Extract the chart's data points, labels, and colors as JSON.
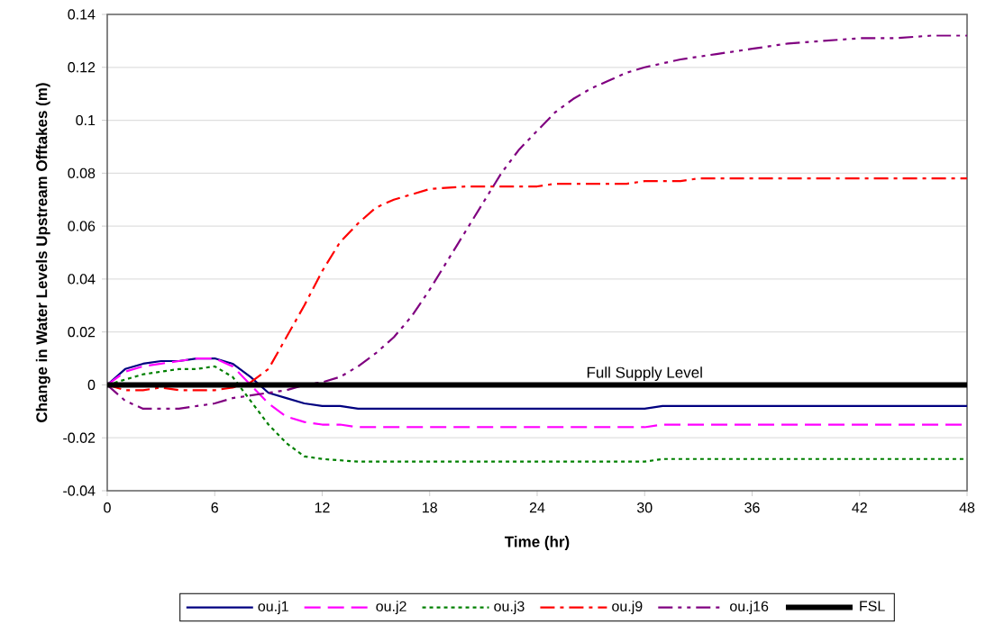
{
  "chart_data": {
    "type": "line",
    "xlabel": "Time (hr)",
    "ylabel": "Change in Water Levels Upstream Offtakes (m)",
    "xlim": [
      0,
      48
    ],
    "xticks": [
      0,
      6,
      12,
      18,
      24,
      30,
      36,
      42,
      48
    ],
    "ylim": [
      -0.04,
      0.14
    ],
    "yticks": [
      -0.04,
      -0.02,
      0,
      0.02,
      0.04,
      0.06,
      0.08,
      0.1,
      0.12,
      0.14
    ],
    "grid": "y",
    "legend": "bottom",
    "marker": "none",
    "series": [
      {
        "name": "ou.j1",
        "color": "#000080",
        "line_style": "solid",
        "x": [
          0,
          1,
          2,
          3,
          4,
          5,
          6,
          7,
          8,
          9,
          10,
          11,
          12,
          13,
          14,
          30,
          31,
          48
        ],
        "values": [
          0,
          0.006,
          0.008,
          0.009,
          0.009,
          0.01,
          0.01,
          0.008,
          0.003,
          -0.003,
          -0.005,
          -0.007,
          -0.008,
          -0.008,
          -0.009,
          -0.009,
          -0.008,
          -0.008
        ]
      },
      {
        "name": "ou.j2",
        "color": "#ff00ff",
        "line_style": "dashed",
        "x": [
          0,
          1,
          2,
          3,
          4,
          5,
          6,
          7,
          8,
          9,
          10,
          11,
          12,
          13,
          14,
          30,
          31,
          48
        ],
        "values": [
          0,
          0.005,
          0.007,
          0.008,
          0.009,
          0.01,
          0.01,
          0.007,
          0.0,
          -0.007,
          -0.012,
          -0.014,
          -0.015,
          -0.015,
          -0.016,
          -0.016,
          -0.015,
          -0.015
        ]
      },
      {
        "name": "ou.j3",
        "color": "#008000",
        "line_style": "dotted",
        "x": [
          0,
          1,
          2,
          3,
          4,
          5,
          6,
          7,
          8,
          9,
          10,
          11,
          12,
          14,
          30,
          31,
          48
        ],
        "values": [
          0,
          0.002,
          0.004,
          0.005,
          0.006,
          0.006,
          0.007,
          0.003,
          -0.006,
          -0.015,
          -0.022,
          -0.027,
          -0.028,
          -0.029,
          -0.029,
          -0.028,
          -0.028
        ]
      },
      {
        "name": "ou.j9",
        "color": "#ff0000",
        "line_style": "dashdot",
        "x": [
          0,
          1,
          2,
          3,
          4,
          6,
          7,
          8,
          9,
          10,
          11,
          12,
          13,
          14,
          15,
          16,
          17,
          18,
          20,
          24,
          25,
          29,
          30,
          32,
          33,
          48
        ],
        "values": [
          0,
          -0.002,
          -0.002,
          -0.001,
          -0.002,
          -0.002,
          -0.001,
          0.001,
          0.006,
          0.018,
          0.03,
          0.043,
          0.054,
          0.061,
          0.067,
          0.07,
          0.072,
          0.074,
          0.075,
          0.075,
          0.076,
          0.076,
          0.077,
          0.077,
          0.078,
          0.078
        ]
      },
      {
        "name": "ou.j16",
        "color": "#800080",
        "line_style": "dashdotdot",
        "x": [
          0,
          1,
          2,
          3,
          4,
          5,
          6,
          7,
          8,
          9,
          10,
          11,
          12,
          13,
          14,
          15,
          16,
          17,
          18,
          19,
          20,
          21,
          22,
          23,
          24,
          25,
          26,
          27,
          28,
          29,
          30,
          32,
          34,
          36,
          38,
          40,
          42,
          44,
          46,
          48
        ],
        "values": [
          0,
          -0.006,
          -0.009,
          -0.009,
          -0.009,
          -0.008,
          -0.007,
          -0.005,
          -0.004,
          -0.003,
          -0.002,
          0.0,
          0.001,
          0.003,
          0.007,
          0.012,
          0.018,
          0.026,
          0.036,
          0.047,
          0.058,
          0.069,
          0.08,
          0.089,
          0.096,
          0.103,
          0.108,
          0.112,
          0.115,
          0.118,
          0.12,
          0.123,
          0.125,
          0.127,
          0.129,
          0.13,
          0.131,
          0.131,
          0.132,
          0.132
        ]
      },
      {
        "name": "FSL",
        "color": "#000000",
        "line_style": "solid",
        "x": [
          0,
          48
        ],
        "values": [
          0,
          0
        ]
      }
    ],
    "annotations": [
      {
        "text": "Full Supply Level",
        "x": 30,
        "y": 0
      }
    ]
  }
}
